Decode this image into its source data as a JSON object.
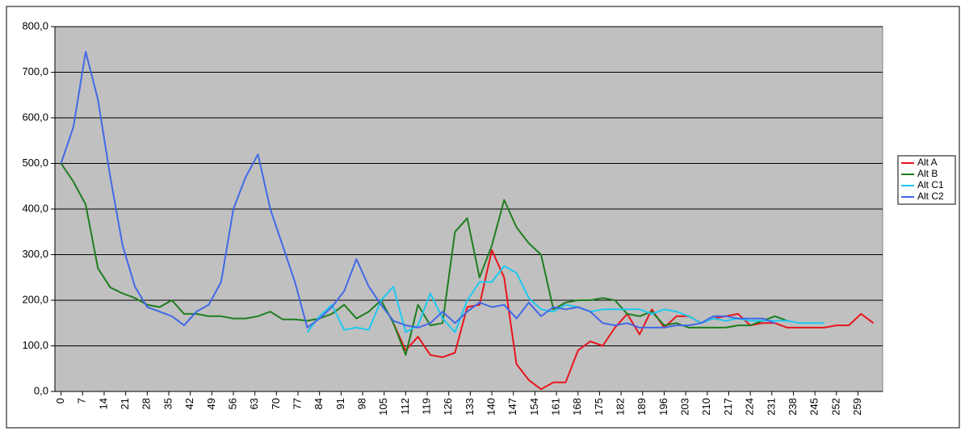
{
  "chart_data": {
    "type": "line",
    "x": [
      0,
      4,
      8,
      12,
      16,
      20,
      24,
      28,
      32,
      36,
      40,
      44,
      48,
      52,
      56,
      60,
      64,
      68,
      72,
      76,
      80,
      84,
      88,
      92,
      96,
      100,
      104,
      108,
      112,
      116,
      120,
      124,
      128,
      132,
      136,
      140,
      144,
      148,
      152,
      156,
      160,
      164,
      168,
      172,
      176,
      180,
      184,
      188,
      192,
      196,
      200,
      204,
      208,
      212,
      216,
      220,
      224,
      228,
      232,
      236,
      240,
      244,
      248,
      252,
      256,
      260,
      264
    ],
    "series": [
      {
        "name": "Alt A",
        "color": "#e8151b",
        "values": [
          null,
          null,
          null,
          null,
          null,
          null,
          null,
          null,
          null,
          null,
          null,
          null,
          null,
          null,
          null,
          null,
          null,
          null,
          null,
          null,
          null,
          null,
          null,
          null,
          null,
          null,
          null,
          150,
          90,
          120,
          80,
          75,
          85,
          185,
          190,
          310,
          250,
          60,
          25,
          5,
          20,
          20,
          90,
          110,
          100,
          140,
          170,
          125,
          180,
          140,
          165,
          165,
          150,
          160,
          165,
          170,
          145,
          150,
          150,
          140,
          140,
          140,
          140,
          145,
          145,
          170,
          150
        ]
      },
      {
        "name": "Alt B",
        "color": "#1e7d1e",
        "values": [
          500,
          460,
          410,
          270,
          228,
          215,
          205,
          190,
          185,
          200,
          170,
          170,
          165,
          165,
          160,
          160,
          165,
          175,
          158,
          158,
          155,
          160,
          170,
          190,
          160,
          175,
          200,
          150,
          80,
          190,
          145,
          150,
          350,
          380,
          250,
          320,
          420,
          360,
          325,
          300,
          180,
          195,
          200,
          200,
          205,
          200,
          170,
          165,
          175,
          145,
          150,
          140,
          140,
          140,
          140,
          145,
          145,
          155,
          165,
          155,
          null,
          null,
          null,
          null,
          null,
          null,
          null
        ]
      },
      {
        "name": "Alt C1",
        "color": "#1ec8f0",
        "values": [
          null,
          null,
          null,
          null,
          null,
          null,
          null,
          null,
          null,
          null,
          null,
          null,
          null,
          null,
          null,
          null,
          null,
          null,
          null,
          null,
          130,
          165,
          190,
          135,
          140,
          135,
          200,
          230,
          130,
          145,
          215,
          160,
          130,
          200,
          240,
          240,
          275,
          260,
          205,
          180,
          175,
          190,
          185,
          175,
          180,
          180,
          180,
          180,
          170,
          180,
          175,
          165,
          150,
          160,
          155,
          160,
          155,
          155,
          155,
          155,
          150,
          150,
          150,
          null,
          null,
          null,
          null
        ]
      },
      {
        "name": "Alt C2",
        "color": "#4169e6",
        "values": [
          500,
          580,
          745,
          640,
          470,
          320,
          230,
          185,
          175,
          165,
          145,
          175,
          190,
          240,
          400,
          470,
          520,
          400,
          320,
          240,
          140,
          160,
          185,
          220,
          290,
          230,
          190,
          155,
          145,
          140,
          150,
          175,
          150,
          175,
          195,
          185,
          190,
          160,
          195,
          165,
          185,
          180,
          185,
          175,
          150,
          145,
          150,
          140,
          140,
          140,
          145,
          145,
          150,
          165,
          165,
          160,
          160,
          160,
          150,
          null,
          null,
          null,
          null,
          null,
          null,
          null,
          null
        ]
      }
    ],
    "xlim": [
      -2,
      267
    ],
    "xticks": [
      0,
      7,
      14,
      21,
      28,
      35,
      42,
      49,
      56,
      63,
      70,
      77,
      84,
      91,
      98,
      105,
      112,
      119,
      126,
      133,
      140,
      147,
      154,
      161,
      168,
      175,
      182,
      189,
      196,
      203,
      210,
      217,
      224,
      231,
      238,
      245,
      252,
      259
    ],
    "ylim": [
      0,
      800
    ],
    "yticks": [
      {
        "value": 0,
        "label": "0,0"
      },
      {
        "value": 100,
        "label": "100,0"
      },
      {
        "value": 200,
        "label": "200,0"
      },
      {
        "value": 300,
        "label": "300,0"
      },
      {
        "value": 400,
        "label": "400,0"
      },
      {
        "value": 500,
        "label": "500,0"
      },
      {
        "value": 600,
        "label": "600,0"
      },
      {
        "value": 700,
        "label": "700,0"
      },
      {
        "value": 800,
        "label": "800,0"
      }
    ],
    "grid": true,
    "legend": "right",
    "plot_background": "#c0c0c0"
  }
}
